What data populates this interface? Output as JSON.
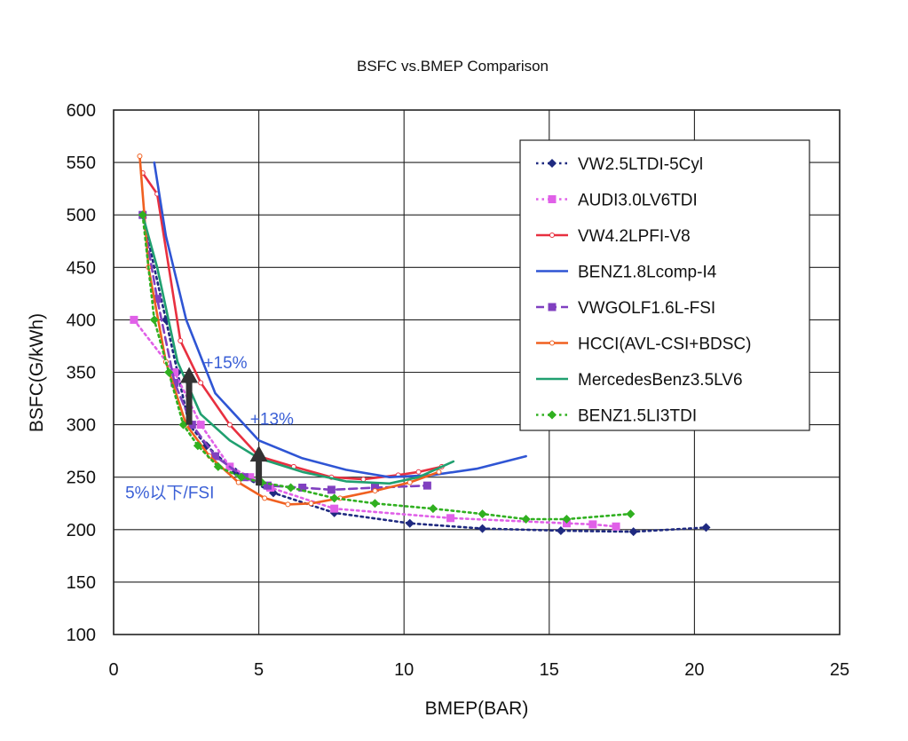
{
  "chart_data": {
    "type": "line",
    "title": "BSFC vs.BMEP Comparison",
    "xlabel": "BMEP(BAR)",
    "ylabel": "BSFC(G/kWh)",
    "xlim": [
      0,
      25
    ],
    "ylim": [
      100,
      600
    ],
    "xticks": [
      "0",
      "5",
      "10",
      "15",
      "20",
      "25"
    ],
    "yticks": [
      "100",
      "150",
      "200",
      "250",
      "300",
      "350",
      "400",
      "450",
      "500",
      "550",
      "600"
    ],
    "grid": true,
    "legend_position": "top-right",
    "series": [
      {
        "name": "VW2.5LTDI-5Cyl",
        "color": "#1f2a80",
        "dash": "dot",
        "marker": "diamond",
        "x": [
          1.0,
          1.8,
          2.2,
          2.6,
          3.2,
          4.2,
          5.5,
          7.6,
          10.2,
          12.7,
          15.4,
          17.9,
          20.4
        ],
        "y": [
          500,
          400,
          350,
          300,
          280,
          255,
          235,
          216,
          206,
          201,
          199,
          198,
          202
        ]
      },
      {
        "name": "AUDI3.0LV6TDI",
        "color": "#e060e8",
        "dash": "dot",
        "marker": "square",
        "x": [
          0.7,
          2.1,
          3.0,
          4.0,
          4.7,
          5.4,
          7.6,
          11.6,
          15.6,
          16.5,
          17.3
        ],
        "y": [
          400,
          350,
          300,
          260,
          250,
          240,
          220,
          211,
          206,
          205,
          203
        ]
      },
      {
        "name": "VW4.2LPFI-V8",
        "color": "#e83040",
        "dash": "solid",
        "marker": "circle",
        "x": [
          1.0,
          1.5,
          2.3,
          3.0,
          4.0,
          5.0,
          6.2,
          7.5,
          8.6,
          9.8,
          10.5,
          11.3
        ],
        "y": [
          540,
          520,
          380,
          340,
          300,
          270,
          260,
          250,
          248,
          252,
          255,
          260
        ]
      },
      {
        "name": "BENZ1.8Lcomp-I4",
        "color": "#2f55d4",
        "dash": "solid",
        "marker": "none",
        "x": [
          1.4,
          1.8,
          2.5,
          3.5,
          5.0,
          6.5,
          8.0,
          9.5,
          11.0,
          12.5,
          14.2
        ],
        "y": [
          550,
          480,
          400,
          330,
          285,
          268,
          257,
          250,
          252,
          258,
          270
        ]
      },
      {
        "name": "VWGOLF1.6L-FSI",
        "color": "#8040c0",
        "dash": "dash",
        "marker": "square",
        "x": [
          1.0,
          1.5,
          2.1,
          2.7,
          3.5,
          4.5,
          5.3,
          6.5,
          7.5,
          9.0,
          10.8
        ],
        "y": [
          500,
          420,
          340,
          300,
          270,
          250,
          242,
          240,
          238,
          240,
          242
        ]
      },
      {
        "name": "HCCI(AVL-CSI+BDSC)",
        "color": "#f06020",
        "dash": "solid",
        "marker": "circle",
        "x": [
          0.9,
          1.2,
          1.8,
          2.5,
          3.3,
          4.3,
          5.2,
          6.0,
          6.8,
          7.8,
          9.0,
          10.2,
          11.2
        ],
        "y": [
          556,
          450,
          360,
          300,
          270,
          245,
          230,
          224,
          225,
          230,
          237,
          245,
          255
        ]
      },
      {
        "name": "MercedesBenz3.5LV6",
        "color": "#20a070",
        "dash": "solid",
        "marker": "none",
        "x": [
          1.0,
          1.5,
          2.2,
          3.0,
          4.0,
          5.0,
          6.5,
          8.0,
          9.5,
          10.5,
          11.7
        ],
        "y": [
          500,
          450,
          360,
          310,
          285,
          268,
          255,
          246,
          244,
          250,
          265
        ]
      },
      {
        "name": "BENZ1.5LI3TDI",
        "color": "#30b020",
        "dash": "dot",
        "marker": "diamond",
        "x": [
          1.0,
          1.4,
          1.9,
          2.4,
          2.9,
          3.6,
          4.4,
          5.1,
          6.1,
          7.6,
          9.0,
          11.0,
          12.7,
          14.2,
          15.6,
          17.8
        ],
        "y": [
          500,
          400,
          350,
          300,
          280,
          260,
          250,
          245,
          240,
          230,
          225,
          220,
          215,
          210,
          210,
          215
        ]
      }
    ],
    "annotations": [
      {
        "text": "+15%",
        "x": 3.1,
        "y": 354
      },
      {
        "text": "+13%",
        "x": 4.7,
        "y": 300
      },
      {
        "text": "5%以下/FSI",
        "x": 0.4,
        "y": 230
      }
    ],
    "arrows": [
      {
        "x": 2.6,
        "y_from": 300,
        "y_to": 350
      },
      {
        "x": 5.0,
        "y_from": 242,
        "y_to": 275
      }
    ]
  }
}
